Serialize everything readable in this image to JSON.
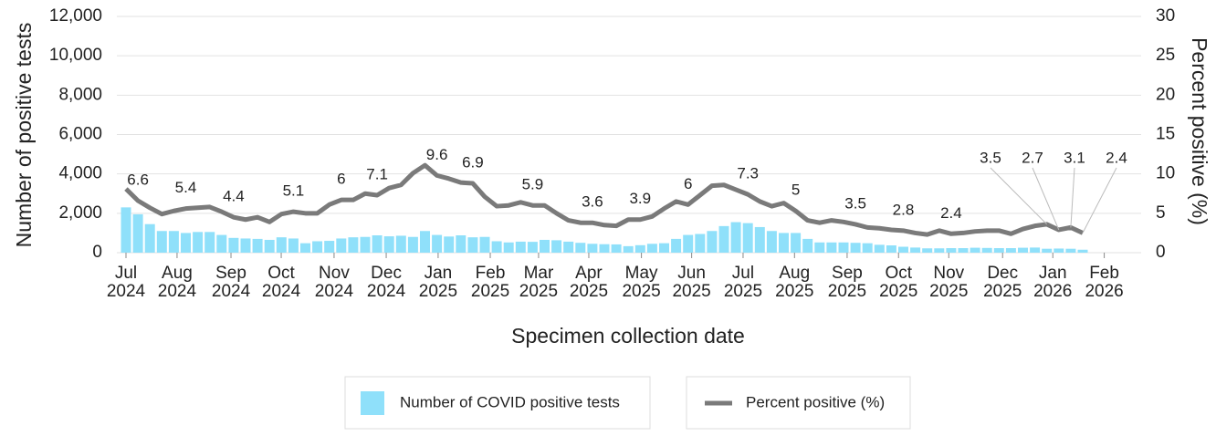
{
  "chart_data": {
    "type": "bar-line",
    "x_label": "Specimen collection date",
    "y_label": "Number of positive tests",
    "y2_label": "Percent positive (%)",
    "categories": [
      null,
      null,
      null,
      null,
      null,
      null,
      null,
      null,
      null,
      null,
      null,
      null,
      null,
      null,
      null,
      null,
      null,
      null,
      null,
      null,
      null,
      null,
      null,
      null,
      null,
      null,
      null,
      null,
      null,
      null,
      null,
      null,
      null,
      null,
      null,
      null,
      null,
      null,
      null,
      null,
      null,
      null,
      null,
      null,
      null,
      null,
      null,
      null,
      null,
      null,
      null,
      null,
      null,
      null,
      null,
      null,
      null,
      null,
      null,
      null,
      null,
      null,
      null,
      null,
      null,
      null,
      null,
      null,
      null,
      null,
      null,
      null,
      null,
      null,
      null,
      null,
      null,
      null,
      null,
      null,
      null
    ],
    "xticks": [
      {
        "value": 0,
        "label": "Jul 2024"
      },
      {
        "value": 4.27,
        "label": "Aug 2024"
      },
      {
        "value": 8.78,
        "label": "Sep 2024"
      },
      {
        "value": 12.98,
        "label": "Oct 2024"
      },
      {
        "value": 17.4,
        "label": "Nov 2024"
      },
      {
        "value": 21.76,
        "label": "Dec 2024"
      },
      {
        "value": 26.1,
        "label": "Jan 2025"
      },
      {
        "value": 30.46,
        "label": "Feb 2025"
      },
      {
        "value": 34.5,
        "label": "Mar 2025"
      },
      {
        "value": 38.7,
        "label": "Apr 2025"
      },
      {
        "value": 43.1,
        "label": "May 2025"
      },
      {
        "value": 47.3,
        "label": "Jun 2025"
      },
      {
        "value": 51.6,
        "label": "Jul 2025"
      },
      {
        "value": 55.9,
        "label": "Aug 2025"
      },
      {
        "value": 60.3,
        "label": "Sep 2025"
      },
      {
        "value": 64.6,
        "label": "Oct 2025"
      },
      {
        "value": 68.8,
        "label": "Nov 2025"
      },
      {
        "value": 73.3,
        "label": "Dec 2025"
      },
      {
        "value": 77.5,
        "label": "Jan 2026"
      },
      {
        "value": 81.8,
        "label": "Feb 2026"
      }
    ],
    "ylim": [
      0,
      12000
    ],
    "yticks": [
      0,
      {
        "value": 2000,
        "label": "2,000"
      },
      {
        "value": 4000,
        "label": "4,000"
      },
      {
        "value": 6000,
        "label": "6,000"
      },
      {
        "value": 8000,
        "label": "8,000"
      },
      {
        "value": 10000,
        "label": "10,000"
      },
      {
        "value": 12000,
        "label": "12,000"
      }
    ],
    "y2lim": [
      0,
      30
    ],
    "y2ticks": [
      0,
      5,
      10,
      15,
      20,
      25,
      30
    ],
    "grid": true,
    "series": [
      {
        "name": "Number of COVID positive tests",
        "type": "bar",
        "color": "#8fe0fa",
        "values": [
          2300,
          1950,
          1450,
          1100,
          1100,
          1000,
          1050,
          1050,
          900,
          750,
          720,
          700,
          650,
          780,
          720,
          480,
          580,
          600,
          720,
          780,
          800,
          880,
          830,
          860,
          800,
          1100,
          900,
          820,
          880,
          780,
          800,
          580,
          520,
          560,
          550,
          650,
          630,
          560,
          500,
          450,
          430,
          420,
          330,
          380,
          450,
          480,
          700,
          900,
          950,
          1100,
          1350,
          1550,
          1500,
          1300,
          1100,
          1000,
          1000,
          700,
          520,
          520,
          520,
          500,
          480,
          400,
          370,
          300,
          260,
          220,
          220,
          230,
          230,
          250,
          240,
          230,
          230,
          250,
          260,
          200,
          210,
          200,
          150
        ]
      },
      {
        "name": "Percent positive (%)",
        "type": "line",
        "axis": "y2",
        "color": "#7a7a7a",
        "values": [
          8.1,
          6.6,
          5.7,
          4.9,
          5.3,
          5.6,
          5.7,
          5.8,
          5.2,
          4.5,
          4.2,
          4.5,
          3.9,
          4.9,
          5.2,
          5.0,
          5.0,
          6.1,
          6.7,
          6.7,
          7.5,
          7.3,
          8.2,
          8.6,
          10.1,
          11.1,
          9.8,
          9.4,
          8.9,
          8.8,
          7.1,
          5.9,
          6.0,
          6.4,
          6.0,
          6.0,
          5.0,
          4.1,
          3.8,
          3.8,
          3.5,
          3.4,
          4.2,
          4.2,
          4.6,
          5.6,
          6.5,
          6.1,
          7.3,
          8.5,
          8.6,
          8.0,
          7.4,
          6.5,
          5.9,
          6.3,
          5.3,
          4.1,
          3.8,
          4.1,
          3.9,
          3.6,
          3.2,
          3.1,
          2.9,
          2.8,
          2.5,
          2.3,
          2.8,
          2.4,
          2.5,
          2.7,
          2.8,
          2.8,
          2.4,
          3.0,
          3.4,
          3.6,
          2.9,
          3.2,
          2.5
        ]
      }
    ],
    "annotations": [
      {
        "x": 1,
        "value": 6.6
      },
      {
        "x": 5,
        "value": 5.4
      },
      {
        "x": 9,
        "value": 4.4
      },
      {
        "x": 14,
        "value": 5.1
      },
      {
        "x": 18,
        "value": 6
      },
      {
        "x": 21,
        "value": 7.1
      },
      {
        "x": 26,
        "value": 9.6
      },
      {
        "x": 29,
        "value": 6.9
      },
      {
        "x": 34,
        "value": 5.9
      },
      {
        "x": 39,
        "value": 3.6
      },
      {
        "x": 43,
        "value": 3.9
      },
      {
        "x": 47,
        "value": 6
      },
      {
        "x": 52,
        "value": 7.3
      },
      {
        "x": 56,
        "value": 5
      },
      {
        "x": 61,
        "value": 3.5
      },
      {
        "x": 65,
        "value": 2.8
      },
      {
        "x": 69,
        "value": 2.4
      }
    ],
    "callouts": [
      {
        "x": 77,
        "value": 3.5
      },
      {
        "x": 78,
        "value": 2.7
      },
      {
        "x": 79,
        "value": 3.1
      },
      {
        "x": 80,
        "value": 2.4
      }
    ]
  }
}
